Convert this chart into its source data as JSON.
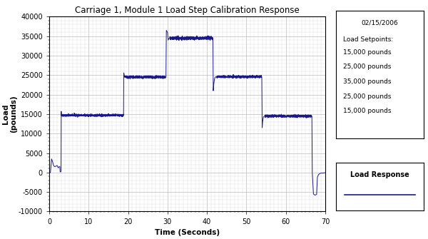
{
  "title": "Carriage 1, Module 1 Load Step Calibration Response",
  "xlabel": "Time (Seconds)",
  "ylabel": "Load\n(pounds)",
  "xlim": [
    0,
    70
  ],
  "ylim": [
    -10000,
    40000
  ],
  "xticks": [
    0,
    10,
    20,
    30,
    40,
    50,
    60,
    70
  ],
  "yticks": [
    -10000,
    -5000,
    0,
    5000,
    10000,
    15000,
    20000,
    25000,
    30000,
    35000,
    40000
  ],
  "line_color": "#1a1a8c",
  "bg_color": "#ffffff",
  "grid_color_major": "#bbbbbb",
  "grid_color_minor": "#dddddd",
  "date_text": "02/15/2006",
  "setpoints_title": "Load Setpoints:",
  "setpoints": [
    "15,000 pounds",
    "25,000 pounds",
    "35,000 pounds",
    "25,000 pounds",
    "15,000 pounds"
  ],
  "legend_label": "Load Response",
  "title_fontsize": 8.5,
  "axis_label_fontsize": 7.5,
  "tick_fontsize": 7,
  "annotation_fontsize": 6.5,
  "legend_fontsize": 7
}
